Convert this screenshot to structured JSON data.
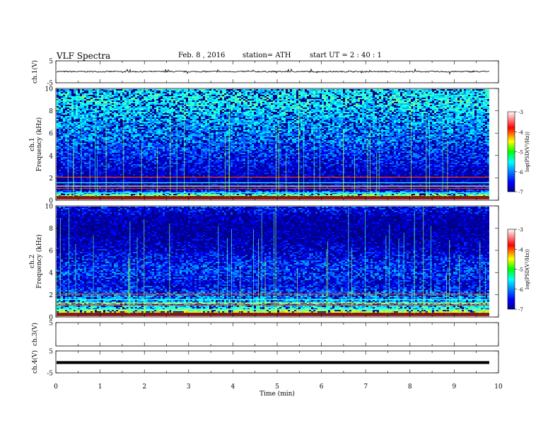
{
  "header": {
    "title": "VLF  Spectra",
    "date": "Feb. 8  , 2016",
    "station": "station= ATH",
    "start": "start  UT  =   2  : 40 : 1"
  },
  "chart_data": {
    "type": "heatmap",
    "xlabel": "Time  (min)",
    "xlim": [
      0,
      10
    ],
    "x_ticks": [
      "0",
      "1",
      "2",
      "3",
      "4",
      "5",
      "6",
      "7",
      "8",
      "9",
      "10"
    ],
    "panels": [
      {
        "id": "ch1-wave",
        "type": "line",
        "ylabel": "ch.1(V)",
        "ylim": [
          -5,
          5
        ],
        "y_ticks": [
          "5",
          "-5"
        ],
        "approx_level": 0.1,
        "noise_amplitude": 0.3,
        "spike_max": 1.2
      },
      {
        "id": "ch1-spec",
        "type": "heatmap",
        "ylabel_top": "ch.1",
        "ylabel": "Frequency  (kHz)",
        "ylim": [
          0,
          10
        ],
        "y_ticks": [
          "0",
          "2",
          "4",
          "6",
          "8",
          "10"
        ],
        "colorbar": {
          "label": "log(PSD(V²/Hz))",
          "range": [
            -7,
            -3
          ],
          "ticks": [
            "-3",
            "-4",
            "-5",
            "-6",
            "-7"
          ]
        },
        "intensity_profile": [
          {
            "khz": 10,
            "log_psd": -5.6
          },
          {
            "khz": 9,
            "log_psd": -5.4
          },
          {
            "khz": 8,
            "log_psd": -5.6
          },
          {
            "khz": 7,
            "log_psd": -5.8
          },
          {
            "khz": 6,
            "log_psd": -5.9
          },
          {
            "khz": 5,
            "log_psd": -6.1
          },
          {
            "khz": 4,
            "log_psd": -6.3
          },
          {
            "khz": 3,
            "log_psd": -6.5
          },
          {
            "khz": 2,
            "log_psd": -6.8
          },
          {
            "khz": 1,
            "log_psd": -6.6
          },
          {
            "khz": 0,
            "log_psd": -3.5
          }
        ]
      },
      {
        "id": "ch2-spec",
        "type": "heatmap",
        "ylabel_top": "ch.2",
        "ylabel": "Frequency  (kHz)",
        "ylim": [
          0,
          10
        ],
        "y_ticks": [
          "0",
          "2",
          "4",
          "6",
          "8",
          "10"
        ],
        "colorbar": {
          "label": "log(PSD(V²/Hz))",
          "range": [
            -7,
            -3
          ],
          "ticks": [
            "-3",
            "-4",
            "-5",
            "-6",
            "-7"
          ]
        },
        "intensity_profile": [
          {
            "khz": 10,
            "log_psd": -6.3
          },
          {
            "khz": 9,
            "log_psd": -6.8
          },
          {
            "khz": 8,
            "log_psd": -6.9
          },
          {
            "khz": 7,
            "log_psd": -6.8
          },
          {
            "khz": 6,
            "log_psd": -6.6
          },
          {
            "khz": 5,
            "log_psd": -6.3
          },
          {
            "khz": 4,
            "log_psd": -6.2
          },
          {
            "khz": 3,
            "log_psd": -6.5
          },
          {
            "khz": 2,
            "log_psd": -6.0
          },
          {
            "khz": 1,
            "log_psd": -5.6
          },
          {
            "khz": 0,
            "log_psd": -3.5
          }
        ]
      },
      {
        "id": "ch3-wave",
        "type": "line",
        "ylabel": "ch.3(V)",
        "ylim": [
          -5,
          5
        ],
        "y_ticks": [
          "5"
        ]
      },
      {
        "id": "ch4-wave",
        "type": "line",
        "ylabel": "ch.4(V)",
        "ylim": [
          -5,
          5
        ],
        "y_ticks": [
          "5",
          "-5"
        ],
        "approx_level": -0.3
      }
    ],
    "colormap": "jet",
    "grid": false
  }
}
